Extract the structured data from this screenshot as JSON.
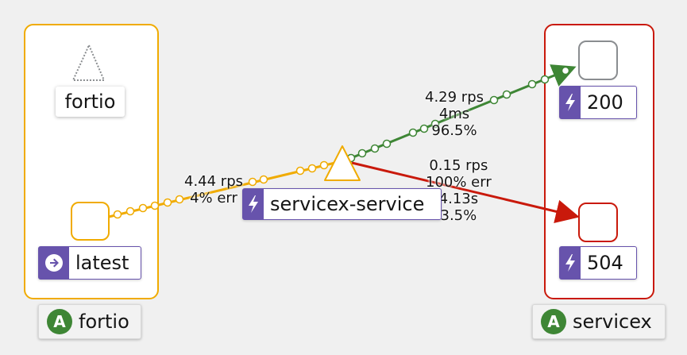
{
  "groups": {
    "fortio": {
      "name": "fortio",
      "badge": "A",
      "border_color": "#f0ab00"
    },
    "servicex": {
      "name": "servicex",
      "badge": "A",
      "border_color": "#c9190b"
    }
  },
  "nodes": {
    "fortio_app": {
      "label": "fortio"
    },
    "fortio_latest": {
      "label": "latest"
    },
    "service": {
      "label": "servicex-service"
    },
    "code_200": {
      "label": "200"
    },
    "code_504": {
      "label": "504"
    }
  },
  "edges": {
    "fortio_to_service": {
      "rps": "4.44 rps",
      "err": "4% err",
      "color": "#f0ab00"
    },
    "service_to_200": {
      "rps": "4.29 rps",
      "time": "4ms",
      "pct": "96.5%",
      "color": "#3e8635"
    },
    "service_to_504": {
      "rps": "0.15 rps",
      "err": "100% err",
      "time": "4.13s",
      "pct": "3.5%",
      "color": "#c9190b"
    }
  },
  "icons": [
    "lightning-icon",
    "arrow-right-circle-icon",
    "triangle-service-icon"
  ],
  "colors": {
    "badge_green": "#3e8635",
    "label_purple": "#6753ac",
    "warning": "#f0ab00",
    "danger": "#c9190b",
    "success": "#3e8635"
  }
}
